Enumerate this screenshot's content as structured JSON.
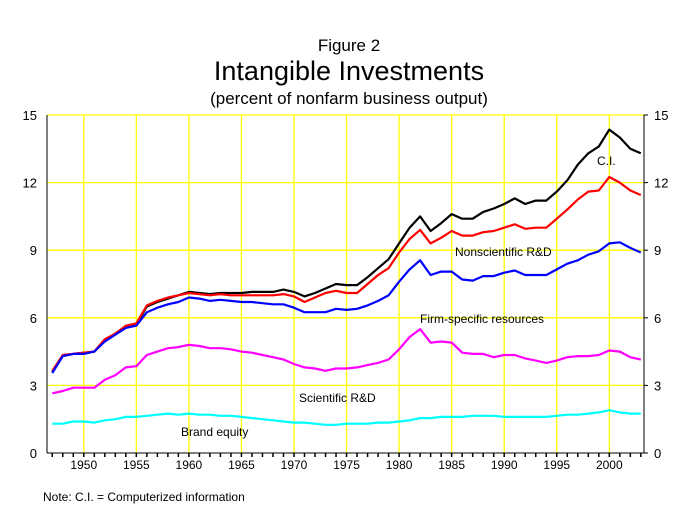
{
  "chart_data": {
    "type": "line",
    "figure_label": "Figure 2",
    "title": "Intangible Investments",
    "subtitle": "(percent of nonfarm business output)",
    "note": "Note: C.I. = Computerized information",
    "xlim": [
      1946.5,
      2003.3
    ],
    "ylim": [
      0,
      15
    ],
    "x_ticks": [
      1950,
      1955,
      1960,
      1965,
      1970,
      1975,
      1980,
      1985,
      1990,
      1995,
      2000
    ],
    "y_ticks": [
      0,
      3,
      6,
      9,
      12,
      15
    ],
    "grid": true,
    "grid_color": "#ffff00",
    "x": [
      1947,
      1948,
      1949,
      1950,
      1951,
      1952,
      1953,
      1954,
      1955,
      1956,
      1957,
      1958,
      1959,
      1960,
      1961,
      1962,
      1963,
      1964,
      1965,
      1966,
      1967,
      1968,
      1969,
      1970,
      1971,
      1972,
      1973,
      1974,
      1975,
      1976,
      1977,
      1978,
      1979,
      1980,
      1981,
      1982,
      1983,
      1984,
      1985,
      1986,
      1987,
      1988,
      1989,
      1990,
      1991,
      1992,
      1993,
      1994,
      1995,
      1996,
      1997,
      1998,
      1999,
      2000,
      2001,
      2002,
      2003
    ],
    "series": [
      {
        "name": "C.I.",
        "color": "#000000",
        "values": [
          3.6,
          4.3,
          4.4,
          4.45,
          4.5,
          5.0,
          5.3,
          5.6,
          5.7,
          6.5,
          6.7,
          6.85,
          7.0,
          7.15,
          7.1,
          7.05,
          7.1,
          7.1,
          7.1,
          7.15,
          7.15,
          7.15,
          7.25,
          7.15,
          6.95,
          7.1,
          7.3,
          7.5,
          7.45,
          7.45,
          7.8,
          8.2,
          8.6,
          9.3,
          10.0,
          10.5,
          9.85,
          10.2,
          10.6,
          10.4,
          10.4,
          10.7,
          10.85,
          11.05,
          11.3,
          11.05,
          11.2,
          11.2,
          11.6,
          12.1,
          12.8,
          13.3,
          13.6,
          14.35,
          14.0,
          13.5,
          13.3
        ]
      },
      {
        "name": "Nonscientific R&D",
        "color": "#ff0000",
        "values": [
          3.65,
          4.35,
          4.4,
          4.45,
          4.5,
          5.05,
          5.3,
          5.65,
          5.75,
          6.55,
          6.75,
          6.9,
          7.0,
          7.1,
          7.05,
          7.0,
          7.05,
          7.0,
          7.0,
          7.0,
          7.0,
          7.0,
          7.05,
          6.95,
          6.7,
          6.9,
          7.1,
          7.2,
          7.1,
          7.1,
          7.5,
          7.9,
          8.2,
          8.9,
          9.5,
          9.9,
          9.3,
          9.55,
          9.85,
          9.65,
          9.65,
          9.8,
          9.85,
          10.0,
          10.15,
          9.95,
          10.0,
          10.0,
          10.4,
          10.8,
          11.25,
          11.6,
          11.65,
          12.25,
          12.0,
          11.65,
          11.45
        ]
      },
      {
        "name": "Firm-specific resources",
        "color": "#0000ff",
        "values": [
          3.55,
          4.3,
          4.4,
          4.4,
          4.5,
          4.95,
          5.25,
          5.55,
          5.65,
          6.25,
          6.45,
          6.6,
          6.7,
          6.9,
          6.85,
          6.75,
          6.8,
          6.75,
          6.7,
          6.7,
          6.65,
          6.6,
          6.6,
          6.45,
          6.25,
          6.25,
          6.25,
          6.4,
          6.35,
          6.4,
          6.55,
          6.75,
          7.0,
          7.6,
          8.15,
          8.55,
          7.9,
          8.05,
          8.05,
          7.7,
          7.65,
          7.85,
          7.85,
          8.0,
          8.1,
          7.9,
          7.9,
          7.9,
          8.15,
          8.4,
          8.55,
          8.8,
          8.95,
          9.3,
          9.35,
          9.1,
          8.9
        ]
      },
      {
        "name": "Scientific R&D",
        "color": "#ff00ff",
        "values": [
          2.65,
          2.75,
          2.9,
          2.9,
          2.9,
          3.25,
          3.45,
          3.8,
          3.85,
          4.35,
          4.5,
          4.65,
          4.7,
          4.8,
          4.75,
          4.65,
          4.65,
          4.6,
          4.5,
          4.45,
          4.35,
          4.25,
          4.15,
          3.95,
          3.8,
          3.75,
          3.65,
          3.75,
          3.75,
          3.8,
          3.9,
          4.0,
          4.15,
          4.6,
          5.15,
          5.5,
          4.9,
          4.95,
          4.9,
          4.45,
          4.4,
          4.4,
          4.25,
          4.35,
          4.35,
          4.2,
          4.1,
          4.0,
          4.1,
          4.25,
          4.3,
          4.3,
          4.35,
          4.55,
          4.5,
          4.25,
          4.15
        ]
      },
      {
        "name": "Brand equity",
        "color": "#00ffff",
        "values": [
          1.3,
          1.3,
          1.4,
          1.4,
          1.35,
          1.45,
          1.5,
          1.6,
          1.6,
          1.65,
          1.7,
          1.75,
          1.7,
          1.75,
          1.7,
          1.7,
          1.65,
          1.65,
          1.6,
          1.55,
          1.5,
          1.45,
          1.4,
          1.35,
          1.35,
          1.3,
          1.25,
          1.25,
          1.3,
          1.3,
          1.3,
          1.35,
          1.35,
          1.4,
          1.45,
          1.55,
          1.55,
          1.6,
          1.6,
          1.6,
          1.65,
          1.65,
          1.65,
          1.6,
          1.6,
          1.6,
          1.6,
          1.6,
          1.65,
          1.7,
          1.7,
          1.75,
          1.8,
          1.9,
          1.8,
          1.75,
          1.75
        ]
      }
    ],
    "annotations": [
      "C.I.",
      "Nonscientific R&D",
      "Firm-specific resources",
      "Scientific R&D",
      "Brand equity"
    ]
  }
}
